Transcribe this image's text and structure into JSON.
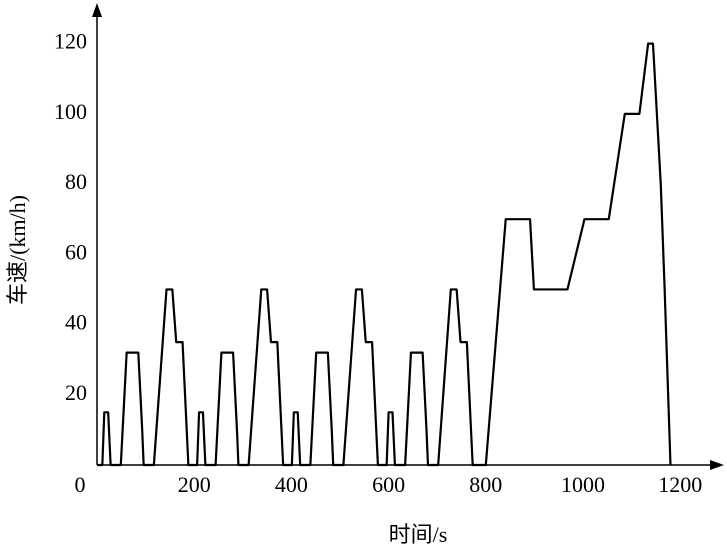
{
  "chart_data": {
    "type": "line",
    "x_label": "时间/s",
    "y_label": "车速/(km/h)",
    "xlim": [
      0,
      1286
    ],
    "ylim": [
      0,
      131
    ],
    "xticks": [
      0,
      200,
      400,
      600,
      800,
      1000,
      1200
    ],
    "yticks": [
      20,
      40,
      60,
      80,
      100,
      120
    ],
    "grid": false,
    "series": [
      {
        "color": "#000000",
        "x": [
          0,
          11,
          15,
          23,
          28,
          49,
          61,
          85,
          93,
          96,
          117,
          143,
          155,
          163,
          176,
          188,
          195,
          206,
          210,
          218,
          223,
          244,
          256,
          280,
          288,
          291,
          312,
          338,
          350,
          358,
          371,
          383,
          390,
          401,
          405,
          413,
          418,
          439,
          451,
          475,
          483,
          486,
          507,
          533,
          545,
          553,
          566,
          578,
          585,
          596,
          600,
          608,
          613,
          634,
          646,
          670,
          678,
          681,
          702,
          728,
          740,
          748,
          761,
          773,
          780,
          800,
          841,
          891,
          899,
          968,
          1003,
          1053,
          1086,
          1116,
          1134,
          1144,
          1160,
          1168,
          1180
        ],
        "values": [
          0,
          0,
          15,
          15,
          0,
          0,
          32,
          32,
          10,
          0,
          0,
          50,
          50,
          35,
          35,
          0,
          0,
          0,
          15,
          15,
          0,
          0,
          32,
          32,
          10,
          0,
          0,
          50,
          50,
          35,
          35,
          0,
          0,
          0,
          15,
          15,
          0,
          0,
          32,
          32,
          10,
          0,
          0,
          50,
          50,
          35,
          35,
          0,
          0,
          0,
          15,
          15,
          0,
          0,
          32,
          32,
          10,
          0,
          0,
          50,
          50,
          35,
          35,
          0,
          0,
          0,
          70,
          70,
          50,
          50,
          70,
          70,
          100,
          100,
          120,
          120,
          80,
          50,
          0
        ]
      }
    ]
  }
}
